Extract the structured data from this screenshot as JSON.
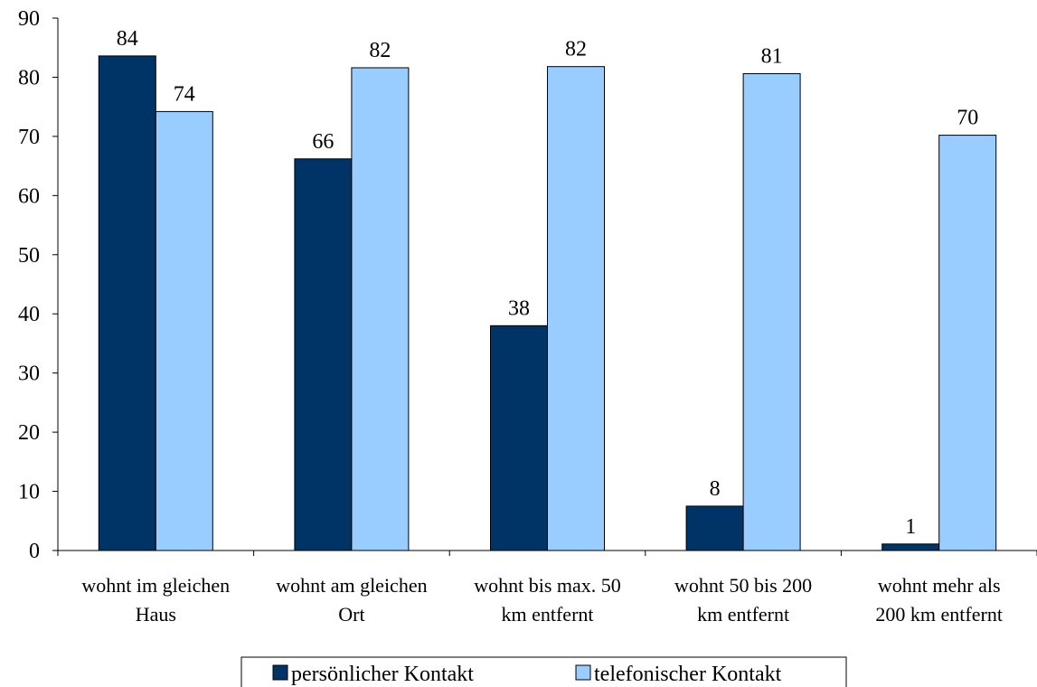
{
  "chart_data": {
    "type": "bar",
    "categories": [
      [
        "wohnt im gleichen",
        "Haus"
      ],
      [
        "wohnt am gleichen",
        "Ort"
      ],
      [
        "wohnt bis max. 50",
        "km entfernt"
      ],
      [
        "wohnt 50 bis 200",
        "km entfernt"
      ],
      [
        "wohnt mehr als",
        "200 km entfernt"
      ]
    ],
    "series": [
      {
        "name": "persönlicher Kontakt",
        "color": "#003366",
        "values": [
          84,
          66,
          38,
          8,
          1
        ],
        "plot_values": [
          83.6,
          66.2,
          38.0,
          7.5,
          1.1
        ]
      },
      {
        "name": "telefonischer Kontakt",
        "color": "#99CCFF",
        "values": [
          74,
          82,
          82,
          81,
          70
        ],
        "plot_values": [
          74.2,
          81.6,
          81.8,
          80.6,
          70.2
        ]
      }
    ],
    "ylim": [
      0,
      90
    ],
    "yticks": [
      0,
      10,
      20,
      30,
      40,
      50,
      60,
      70,
      80,
      90
    ],
    "grid": false,
    "legend_position": "bottom"
  }
}
